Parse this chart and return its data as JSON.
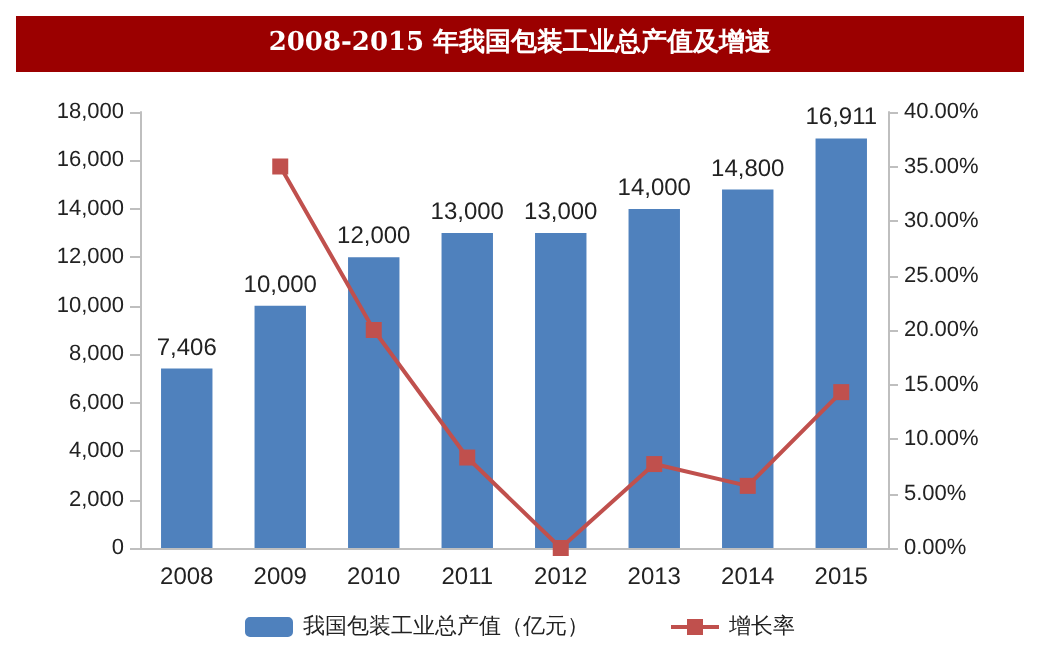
{
  "chart_data": {
    "type": "bar",
    "title": "2008-2015 年我国包装工业总产值及增速",
    "categories": [
      "2008",
      "2009",
      "2010",
      "2011",
      "2012",
      "2013",
      "2014",
      "2015"
    ],
    "series": [
      {
        "name": "我国包装工业总产值（亿元）",
        "color": "#4f81bd",
        "values": [
          7406,
          10000,
          12000,
          13000,
          13000,
          14000,
          14800,
          16911
        ],
        "value_labels": [
          "7,406",
          "10,000",
          "12,000",
          "13,000",
          "13,000",
          "14,000",
          "14,800",
          "16,911"
        ]
      },
      {
        "name": "增长率",
        "type": "line",
        "axis": "y2",
        "color": "#c0504d",
        "marker": "square",
        "values": [
          null,
          35.0,
          20.0,
          8.3,
          0.0,
          7.7,
          5.7,
          14.3
        ]
      }
    ],
    "ylim": [
      0,
      18000
    ],
    "yticks": [
      {
        "value": 0,
        "label": "0"
      },
      {
        "value": 2000,
        "label": "2,000"
      },
      {
        "value": 4000,
        "label": "4,000"
      },
      {
        "value": 6000,
        "label": "6,000"
      },
      {
        "value": 8000,
        "label": "8,000"
      },
      {
        "value": 10000,
        "label": "10,000"
      },
      {
        "value": 12000,
        "label": "12,000"
      },
      {
        "value": 14000,
        "label": "14,000"
      },
      {
        "value": 16000,
        "label": "16,000"
      },
      {
        "value": 18000,
        "label": "18,000"
      }
    ],
    "y2lim": [
      0,
      40
    ],
    "y2ticks": [
      {
        "value": 0,
        "label": "0.00%"
      },
      {
        "value": 5,
        "label": "5.00%"
      },
      {
        "value": 10,
        "label": "10.00%"
      },
      {
        "value": 15,
        "label": "15.00%"
      },
      {
        "value": 20,
        "label": "20.00%"
      },
      {
        "value": 25,
        "label": "25.00%"
      },
      {
        "value": 30,
        "label": "30.00%"
      },
      {
        "value": 35,
        "label": "35.00%"
      },
      {
        "value": 40,
        "label": "40.00%"
      }
    ],
    "legend": "bottom",
    "grid": false
  }
}
